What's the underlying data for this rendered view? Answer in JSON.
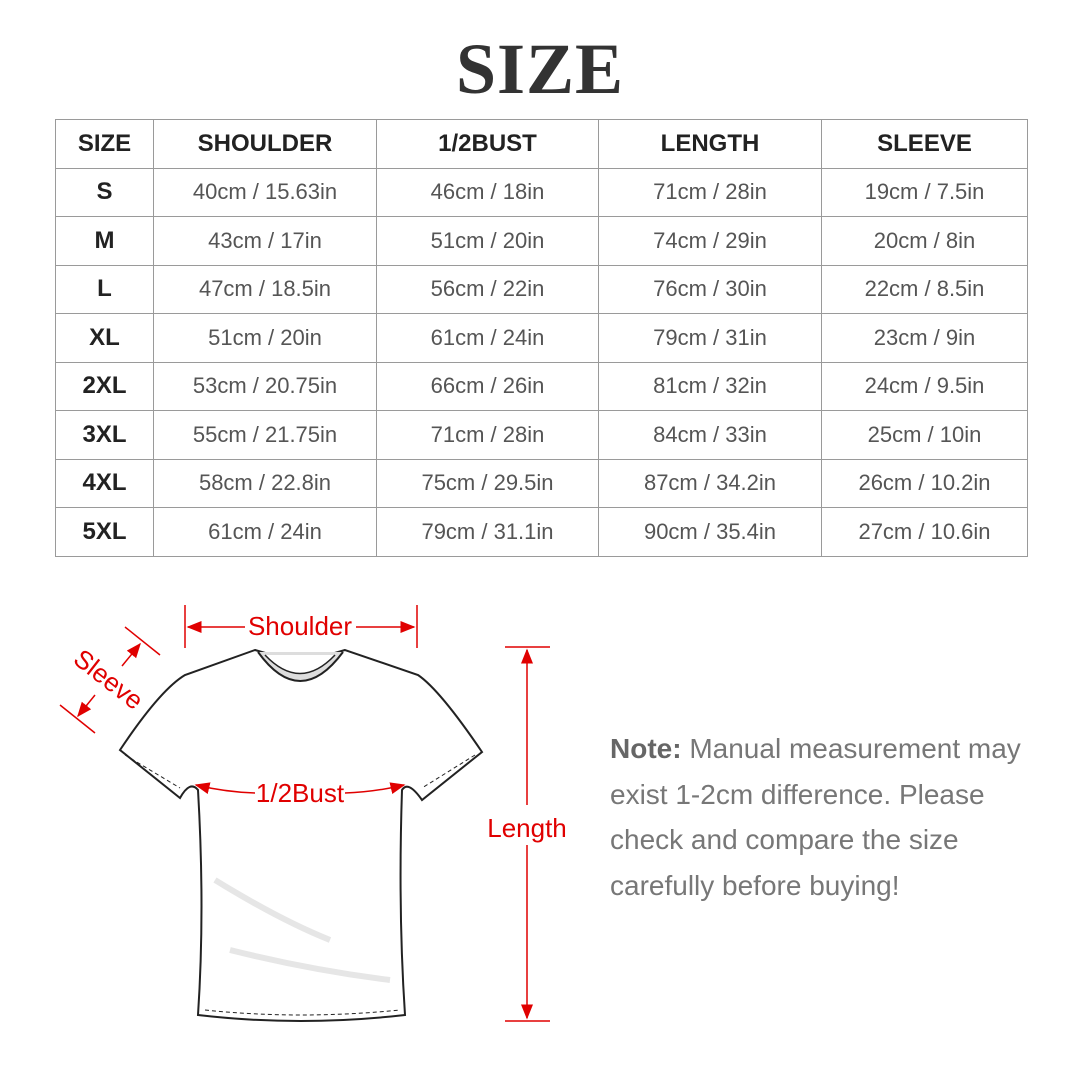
{
  "title": "SIZE",
  "table": {
    "headers": [
      "SIZE",
      "SHOULDER",
      "1/2BUST",
      "LENGTH",
      "SLEEVE"
    ],
    "rows": [
      [
        "S",
        "40cm / 15.63in",
        "46cm / 18in",
        "71cm / 28in",
        "19cm / 7.5in"
      ],
      [
        "M",
        "43cm / 17in",
        "51cm / 20in",
        "74cm / 29in",
        "20cm / 8in"
      ],
      [
        "L",
        "47cm / 18.5in",
        "56cm / 22in",
        "76cm / 30in",
        "22cm / 8.5in"
      ],
      [
        "XL",
        "51cm / 20in",
        "61cm / 24in",
        "79cm / 31in",
        "23cm / 9in"
      ],
      [
        "2XL",
        "53cm / 20.75in",
        "66cm / 26in",
        "81cm / 32in",
        "24cm / 9.5in"
      ],
      [
        "3XL",
        "55cm / 21.75in",
        "71cm / 28in",
        "84cm / 33in",
        "25cm / 10in"
      ],
      [
        "4XL",
        "58cm / 22.8in",
        "75cm / 29.5in",
        "87cm / 34.2in",
        "26cm / 10.2in"
      ],
      [
        "5XL",
        "61cm / 24in",
        "79cm / 31.1in",
        "90cm / 35.4in",
        "27cm / 10.6in"
      ]
    ]
  },
  "diagram": {
    "shoulder": "Shoulder",
    "sleeve": "Sleeve",
    "bust": "1/2Bust",
    "length": "Length",
    "accent": "#e00000"
  },
  "note": {
    "label": "Note:",
    "text": " Manual measurement may exist 1-2cm difference. Please check and compare the size carefully before buying!"
  }
}
